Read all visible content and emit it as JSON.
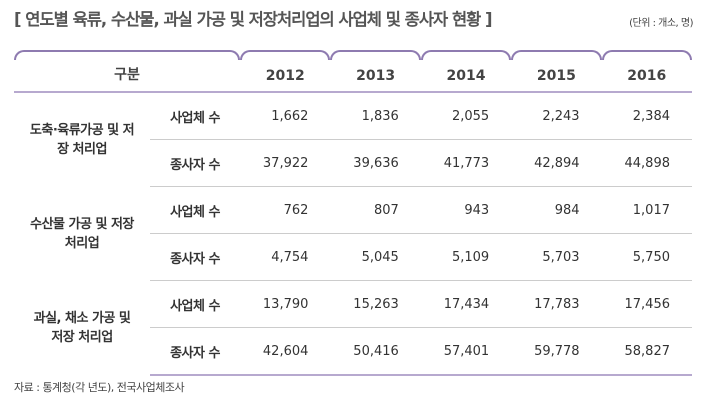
{
  "title": "[ 연도별 육류, 수산물, 과실 가공 및 저장처리업의 사업체 및 종사자 현황 ]",
  "unit": "(단위 : 개소, 명)",
  "header": {
    "category": "구분",
    "years": [
      "2012",
      "2013",
      "2014",
      "2015",
      "2016"
    ]
  },
  "groups": [
    {
      "name": "도축·육류가공 및 저장 처리업",
      "rows": [
        {
          "label": "사업체 수",
          "values": [
            "1,662",
            "1,836",
            "2,055",
            "2,243",
            "2,384"
          ]
        },
        {
          "label": "종사자 수",
          "values": [
            "37,922",
            "39,636",
            "41,773",
            "42,894",
            "44,898"
          ]
        }
      ]
    },
    {
      "name": "수산물 가공 및 저장 처리업",
      "rows": [
        {
          "label": "사업체 수",
          "values": [
            "762",
            "807",
            "943",
            "984",
            "1,017"
          ]
        },
        {
          "label": "종사자 수",
          "values": [
            "4,754",
            "5,045",
            "5,109",
            "5,703",
            "5,750"
          ]
        }
      ]
    },
    {
      "name": "과실, 채소 가공 및 저장 처리업",
      "rows": [
        {
          "label": "사업체 수",
          "values": [
            "13,790",
            "15,263",
            "17,434",
            "17,783",
            "17,456"
          ]
        },
        {
          "label": "종사자 수",
          "values": [
            "42,604",
            "50,416",
            "57,401",
            "59,778",
            "58,827"
          ]
        }
      ]
    }
  ],
  "source": "자료 : 통계청(각 년도), 전국사업체조사"
}
